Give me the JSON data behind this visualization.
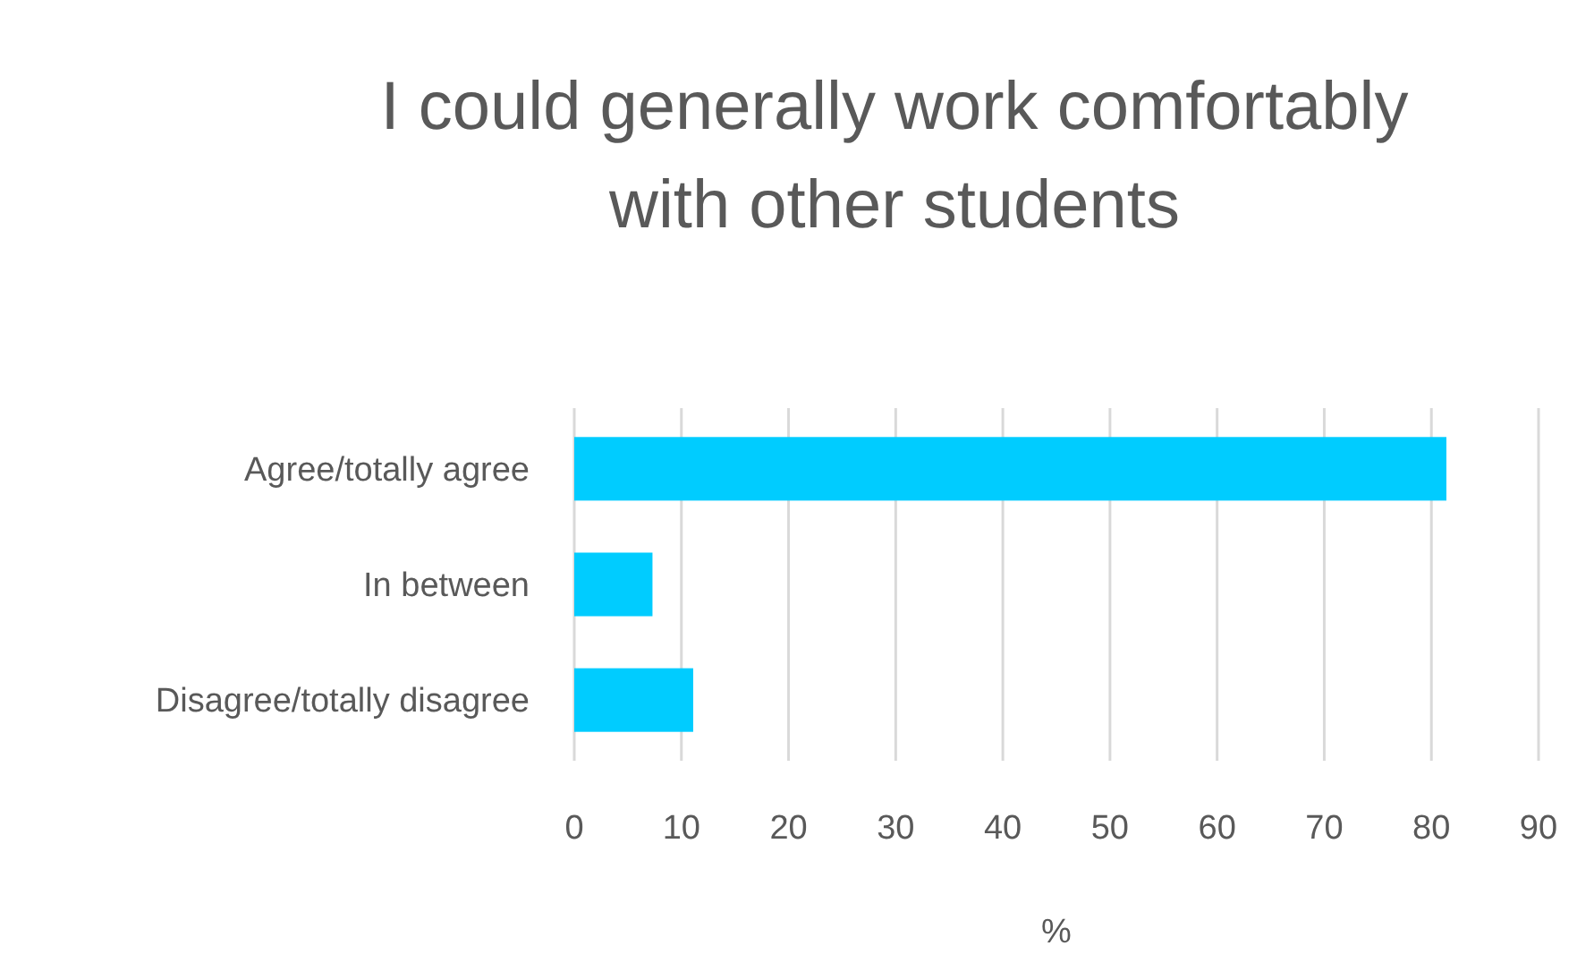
{
  "chart_data": {
    "type": "bar",
    "orientation": "horizontal",
    "title": "I could generally work comfortably with other students",
    "categories": [
      "Agree/totally agree",
      "In between",
      "Disagree/totally disagree"
    ],
    "values": [
      81.4,
      7.3,
      11.1
    ],
    "color": "#00ccff",
    "xlim": [
      0,
      90
    ],
    "xticks": [
      0,
      10,
      20,
      30,
      40,
      50,
      60,
      70,
      80,
      90
    ],
    "xlabel": "%",
    "grid": "x"
  }
}
